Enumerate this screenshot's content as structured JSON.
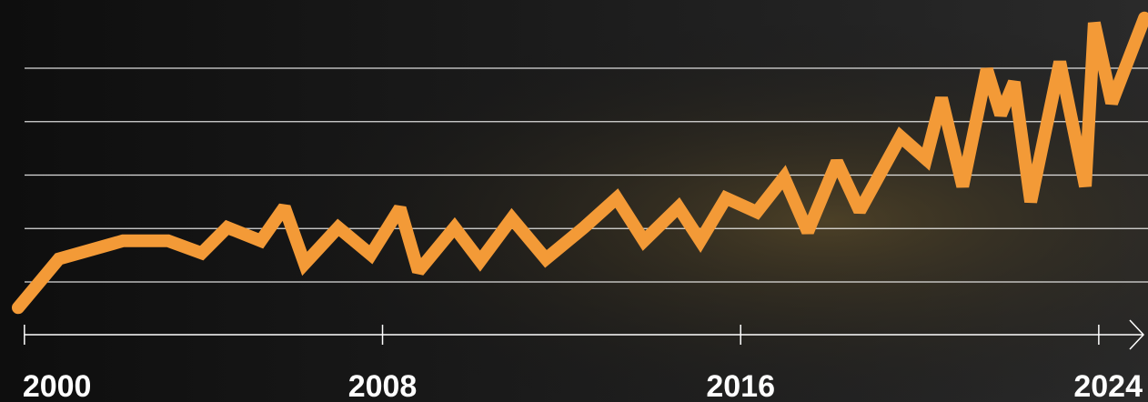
{
  "chart_data": {
    "type": "line",
    "x": [
      1999.86,
      2000.77,
      2002.2,
      2003.21,
      2003.96,
      2004.53,
      2005.28,
      2005.81,
      2006.26,
      2007.01,
      2007.74,
      2008.39,
      2008.8,
      2009.61,
      2010.18,
      2010.89,
      2011.65,
      2012.5,
      2013.23,
      2013.84,
      2014.61,
      2015.1,
      2015.67,
      2016.36,
      2016.97,
      2017.5,
      2018.15,
      2018.66,
      2019.57,
      2020.14,
      2020.49,
      2020.96,
      2021.5,
      2021.81,
      2022.11,
      2022.48,
      2023.13,
      2023.7,
      2023.9,
      2024.29,
      2025.02
    ],
    "series": [
      {
        "color": "#f39a37",
        "values": [
          -0.48,
          0.43,
          0.77,
          0.77,
          0.54,
          1.02,
          0.77,
          1.4,
          0.34,
          1.02,
          0.51,
          1.38,
          0.2,
          1.02,
          0.39,
          1.19,
          0.43,
          1.02,
          1.57,
          0.77,
          1.4,
          0.77,
          1.57,
          1.31,
          1.96,
          0.94,
          2.25,
          1.33,
          2.72,
          2.3,
          3.44,
          1.79,
          3.98,
          3.13,
          3.74,
          1.5,
          4.12,
          1.79,
          4.85,
          3.35,
          4.94
        ]
      }
    ],
    "xlim": [
      1999.8,
      2025.1
    ],
    "xticks": [
      2000,
      2008,
      2016,
      2024
    ],
    "ylim": [
      -1,
      5.25
    ],
    "yticks": [
      0,
      1,
      2,
      3,
      4
    ],
    "grid": true
  }
}
